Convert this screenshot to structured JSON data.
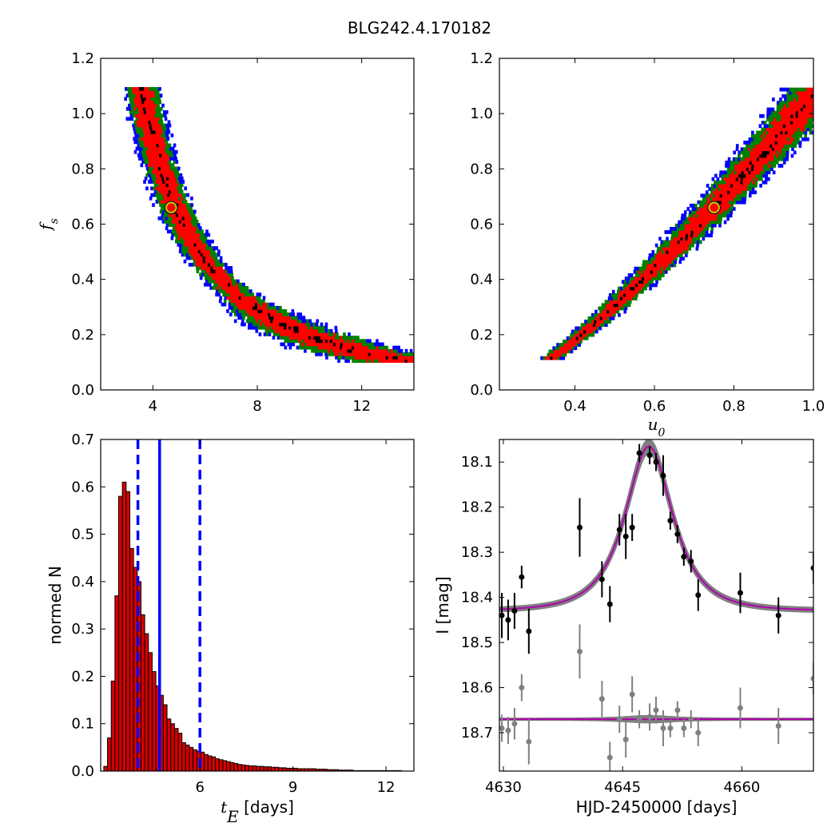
{
  "figure": {
    "title": "BLG242.4.170182"
  },
  "chart_data": [
    {
      "type": "heatmap",
      "panel": "top-left",
      "xlabel": "",
      "ylabel": "f_s",
      "xlim": [
        2,
        14
      ],
      "ylim": [
        0.0,
        1.2
      ],
      "xticks": [
        "4",
        "8",
        "12"
      ],
      "yticks": [
        "0.0",
        "0.2",
        "0.4",
        "0.6",
        "0.8",
        "1.0",
        "1.2"
      ],
      "levels": [
        {
          "name": "outer",
          "color": "#0000ff"
        },
        {
          "name": "middle",
          "color": "#008000"
        },
        {
          "name": "inner",
          "color": "#ff0000"
        },
        {
          "name": "peak",
          "color": "#000000"
        }
      ],
      "best_fit": {
        "x": 4.7,
        "y": 0.66,
        "color": "#c8c800"
      }
    },
    {
      "type": "heatmap",
      "panel": "top-right",
      "xlabel": "u_0",
      "ylabel": "",
      "xlim": [
        0.21,
        1.0
      ],
      "ylim": [
        0.0,
        1.2
      ],
      "xticks": [
        "0.4",
        "0.6",
        "0.8",
        "1.0"
      ],
      "yticks": [
        "0.0",
        "0.2",
        "0.4",
        "0.6",
        "0.8",
        "1.0",
        "1.2"
      ],
      "levels": [
        {
          "name": "outer",
          "color": "#0000ff"
        },
        {
          "name": "middle",
          "color": "#008000"
        },
        {
          "name": "inner",
          "color": "#ff0000"
        },
        {
          "name": "peak",
          "color": "#000000"
        }
      ],
      "best_fit": {
        "x": 0.75,
        "y": 0.66,
        "color": "#c8c800"
      }
    },
    {
      "type": "bar",
      "panel": "bottom-left",
      "xlabel_sym": "t_E",
      "xlabel_unit": " [days]",
      "ylabel": "normed N",
      "xlim": [
        2.8,
        12.9
      ],
      "ylim": [
        0.0,
        0.7
      ],
      "xticks": [
        "6",
        "9",
        "12"
      ],
      "yticks": [
        "0.0",
        "0.1",
        "0.2",
        "0.3",
        "0.4",
        "0.5",
        "0.6",
        "0.7"
      ],
      "bin_start": 2.9,
      "bin_width": 0.12,
      "values": [
        0.01,
        0.07,
        0.19,
        0.37,
        0.58,
        0.61,
        0.59,
        0.47,
        0.43,
        0.4,
        0.33,
        0.29,
        0.25,
        0.21,
        0.18,
        0.16,
        0.14,
        0.11,
        0.1,
        0.09,
        0.08,
        0.06,
        0.055,
        0.05,
        0.045,
        0.042,
        0.04,
        0.035,
        0.032,
        0.03,
        0.026,
        0.024,
        0.022,
        0.02,
        0.018,
        0.016,
        0.014,
        0.013,
        0.012,
        0.011,
        0.011,
        0.01,
        0.01,
        0.009,
        0.009,
        0.008,
        0.008,
        0.007,
        0.007,
        0.006,
        0.006,
        0.006,
        0.005,
        0.005,
        0.005,
        0.005,
        0.005,
        0.004,
        0.004,
        0.004,
        0.003,
        0.003,
        0.003,
        0.002,
        0.002,
        0.002,
        0.002,
        0.001,
        0.001,
        0.001,
        0.001,
        0.001,
        0.001,
        0.001,
        0.001,
        0.001,
        0.001,
        0.001,
        0.001,
        0.001
      ],
      "bar_color": "#d40000",
      "median": 4.7,
      "lower": 4.0,
      "upper": 6.0,
      "line_color": "#0000ff"
    },
    {
      "type": "scatter",
      "panel": "bottom-right",
      "xlabel": "HJD-2450000 [days]",
      "ylabel": "I [mag]",
      "xlim": [
        4629.5,
        4669
      ],
      "ylim": [
        18.785,
        18.05
      ],
      "y_inverted": true,
      "xticks": [
        "4630",
        "4645",
        "4660"
      ],
      "yticks": [
        "18.1",
        "18.2",
        "18.3",
        "18.4",
        "18.5",
        "18.6",
        "18.7"
      ],
      "model": {
        "t0": 4648.3,
        "tE": 4.7,
        "u0": 0.75,
        "baseline": 18.43,
        "peak": 18.065
      },
      "model_color": "#b000b0",
      "band_color": "#808080",
      "residual_baseline": 18.67,
      "points": [
        {
          "x": 4629.8,
          "y": 18.44,
          "e": 0.05
        },
        {
          "x": 4630.6,
          "y": 18.45,
          "e": 0.045
        },
        {
          "x": 4631.4,
          "y": 18.43,
          "e": 0.04
        },
        {
          "x": 4632.3,
          "y": 18.355,
          "e": 0.025
        },
        {
          "x": 4633.2,
          "y": 18.475,
          "e": 0.05
        },
        {
          "x": 4639.6,
          "y": 18.245,
          "e": 0.065
        },
        {
          "x": 4642.4,
          "y": 18.36,
          "e": 0.04
        },
        {
          "x": 4643.4,
          "y": 18.415,
          "e": 0.04
        },
        {
          "x": 4644.6,
          "y": 18.25,
          "e": 0.035
        },
        {
          "x": 4645.4,
          "y": 18.265,
          "e": 0.05
        },
        {
          "x": 4646.2,
          "y": 18.245,
          "e": 0.03
        },
        {
          "x": 4647.1,
          "y": 18.08,
          "e": 0.02
        },
        {
          "x": 4648.4,
          "y": 18.085,
          "e": 0.02
        },
        {
          "x": 4649.2,
          "y": 18.1,
          "e": 0.02
        },
        {
          "x": 4650.1,
          "y": 18.13,
          "e": 0.045
        },
        {
          "x": 4651.0,
          "y": 18.23,
          "e": 0.02
        },
        {
          "x": 4651.9,
          "y": 18.26,
          "e": 0.02
        },
        {
          "x": 4652.7,
          "y": 18.31,
          "e": 0.02
        },
        {
          "x": 4653.6,
          "y": 18.32,
          "e": 0.025
        },
        {
          "x": 4654.5,
          "y": 18.395,
          "e": 0.035
        },
        {
          "x": 4659.8,
          "y": 18.39,
          "e": 0.045
        },
        {
          "x": 4664.6,
          "y": 18.44,
          "e": 0.04
        },
        {
          "x": 4669.0,
          "y": 18.335,
          "e": 0.035
        }
      ],
      "residuals": [
        {
          "x": 4629.8,
          "y": 18.69,
          "e": 0.03
        },
        {
          "x": 4630.6,
          "y": 18.695,
          "e": 0.03
        },
        {
          "x": 4631.4,
          "y": 18.68,
          "e": 0.035
        },
        {
          "x": 4632.3,
          "y": 18.6,
          "e": 0.03
        },
        {
          "x": 4633.2,
          "y": 18.72,
          "e": 0.05
        },
        {
          "x": 4639.6,
          "y": 18.52,
          "e": 0.06
        },
        {
          "x": 4642.4,
          "y": 18.625,
          "e": 0.04
        },
        {
          "x": 4643.4,
          "y": 18.755,
          "e": 0.035
        },
        {
          "x": 4644.6,
          "y": 18.67,
          "e": 0.03
        },
        {
          "x": 4645.4,
          "y": 18.715,
          "e": 0.04
        },
        {
          "x": 4646.2,
          "y": 18.615,
          "e": 0.04
        },
        {
          "x": 4647.1,
          "y": 18.67,
          "e": 0.02
        },
        {
          "x": 4648.4,
          "y": 18.665,
          "e": 0.03
        },
        {
          "x": 4649.2,
          "y": 18.65,
          "e": 0.03
        },
        {
          "x": 4650.1,
          "y": 18.69,
          "e": 0.04
        },
        {
          "x": 4651.0,
          "y": 18.69,
          "e": 0.02
        },
        {
          "x": 4651.9,
          "y": 18.65,
          "e": 0.02
        },
        {
          "x": 4652.7,
          "y": 18.69,
          "e": 0.02
        },
        {
          "x": 4653.6,
          "y": 18.67,
          "e": 0.02
        },
        {
          "x": 4654.5,
          "y": 18.7,
          "e": 0.03
        },
        {
          "x": 4659.8,
          "y": 18.645,
          "e": 0.045
        },
        {
          "x": 4664.6,
          "y": 18.685,
          "e": 0.04
        },
        {
          "x": 4669.0,
          "y": 18.58,
          "e": 0.035
        }
      ],
      "point_color": "#000000",
      "residual_color": "#808080"
    }
  ]
}
